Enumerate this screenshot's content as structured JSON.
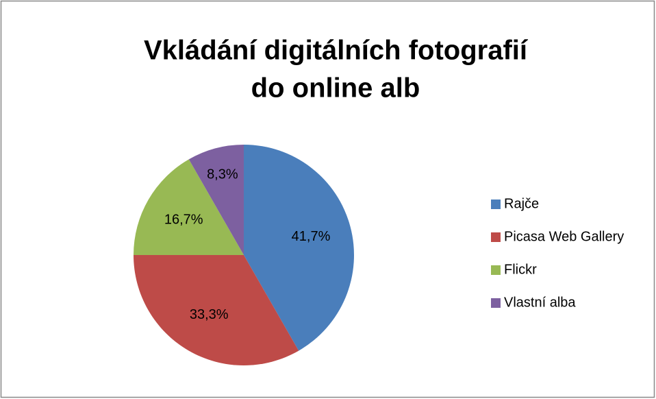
{
  "chart_data": {
    "type": "pie",
    "title": [
      "Vkládání digitálních fotografií",
      "do online alb"
    ],
    "categories": [
      "Rajče",
      "Picasa Web Gallery",
      "Flickr",
      "Vlastní alba"
    ],
    "values": [
      41.7,
      33.3,
      16.7,
      8.3
    ],
    "value_labels": [
      "41,7%",
      "33,3%",
      "16,7%",
      "8,3%"
    ],
    "colors": [
      "#4a7ebb",
      "#be4b48",
      "#98b954",
      "#7d60a0"
    ],
    "legend": "right"
  }
}
